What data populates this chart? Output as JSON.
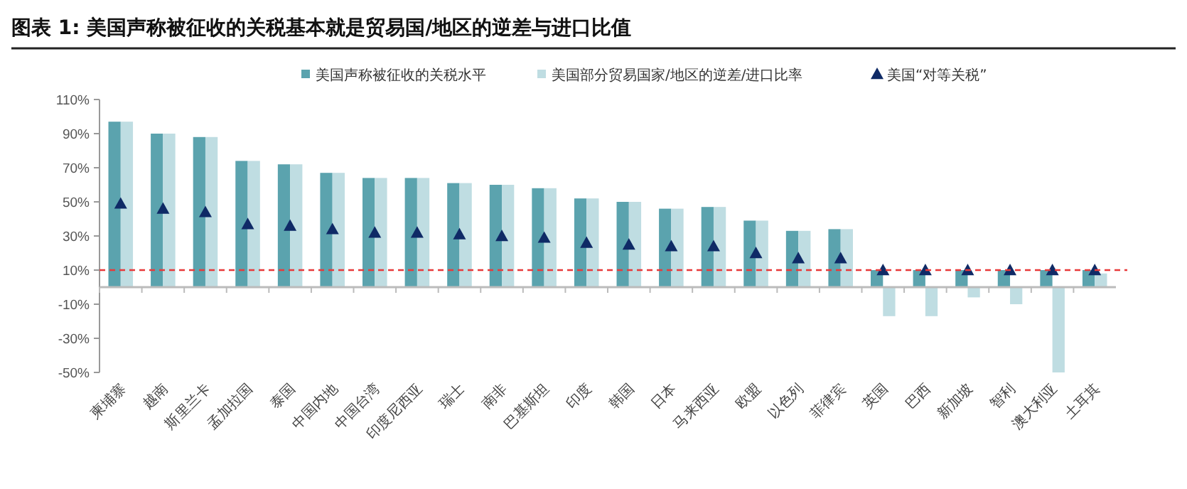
{
  "chart_data": {
    "type": "bar",
    "title": "图表 1: 美国声称被征收的关税基本就是贸易国/地区的逆差与进口比值",
    "categories": [
      "柬埔寨",
      "越南",
      "斯里兰卡",
      "孟加拉国",
      "泰国",
      "中国内地",
      "中国台湾",
      "印度尼西亚",
      "瑞士",
      "南非",
      "巴基斯坦",
      "印度",
      "韩国",
      "日本",
      "马来西亚",
      "欧盟",
      "以色列",
      "菲律宾",
      "英国",
      "巴西",
      "新加坡",
      "智利",
      "澳大利亚",
      "土耳其"
    ],
    "series": [
      {
        "name": "美国声称被征收的关税水平",
        "color": "#5ba3ae",
        "values": [
          97,
          90,
          88,
          74,
          72,
          67,
          64,
          64,
          61,
          60,
          58,
          52,
          50,
          46,
          47,
          39,
          33,
          34,
          10,
          10,
          10,
          10,
          10,
          10
        ]
      },
      {
        "name": "美国部分贸易国家/地区的逆差/进口比率",
        "color": "#bfdde2",
        "values": [
          97,
          90,
          88,
          74,
          72,
          67,
          64,
          64,
          61,
          60,
          58,
          52,
          50,
          46,
          47,
          39,
          33,
          34,
          -17,
          -17,
          -6,
          -10,
          -50,
          8
        ]
      },
      {
        "name": "美国“对等关税”",
        "type": "scatter",
        "marker": "triangle",
        "color": "#0f2a66",
        "x": [
          "柬埔寨",
          "越南",
          "斯里兰卡",
          "孟加拉国",
          "泰国",
          "中国内地",
          "中国台湾",
          "印度尼西亚",
          "瑞士",
          "南非",
          "巴基斯坦",
          "印度",
          "韩国",
          "日本",
          "马来西亚",
          "欧盟",
          "以色列",
          "菲律宾",
          "英国",
          "巴西",
          "新加坡",
          "智利",
          "澳大利亚",
          "土耳其"
        ],
        "values": [
          49,
          46,
          44,
          37,
          36,
          34,
          32,
          32,
          31,
          30,
          29,
          26,
          25,
          24,
          24,
          20,
          17,
          17,
          10,
          10,
          10,
          10,
          10,
          10
        ]
      }
    ],
    "ylim": [
      -50,
      110
    ],
    "yticks": [
      {
        "value": -50,
        "label": "-50%"
      },
      {
        "value": -30,
        "label": "-30%"
      },
      {
        "value": -10,
        "label": "-10%"
      },
      {
        "value": 10,
        "label": "10%"
      },
      {
        "value": 30,
        "label": "30%"
      },
      {
        "value": 50,
        "label": "50%"
      },
      {
        "value": 70,
        "label": "70%"
      },
      {
        "value": 90,
        "label": "90%"
      },
      {
        "value": 110,
        "label": "110%"
      }
    ],
    "ref_lines": [
      {
        "axis": "y",
        "value": 10,
        "color": "#e8393a",
        "line_style": "dashed"
      }
    ],
    "grid": false,
    "legend": "top"
  }
}
